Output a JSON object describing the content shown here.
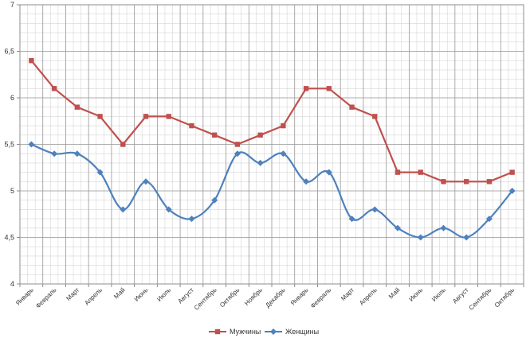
{
  "chart_data": {
    "type": "line",
    "categories": [
      "Январь",
      "Февраль",
      "Март",
      "Апрель",
      "Май",
      "Июнь",
      "Июль",
      "Август",
      "Сентябрь",
      "Октябрь",
      "Ноябрь",
      "Декабрь",
      "Январь",
      "Февраль",
      "Март",
      "Апрель",
      "Май",
      "Июнь",
      "Июль",
      "Август",
      "Сентябрь",
      "Октябрь"
    ],
    "series": [
      {
        "name": "Мужчины",
        "color": "#c0504d",
        "marker": "square",
        "smooth": false,
        "values": [
          6.4,
          6.1,
          5.9,
          5.8,
          5.5,
          5.8,
          5.8,
          5.7,
          5.6,
          5.5,
          5.6,
          5.7,
          6.1,
          6.1,
          5.9,
          5.8,
          5.2,
          5.2,
          5.1,
          5.1,
          5.1,
          5.2
        ]
      },
      {
        "name": "Женщины",
        "color": "#4f81bd",
        "marker": "diamond",
        "smooth": true,
        "values": [
          5.5,
          5.4,
          5.4,
          5.2,
          4.8,
          5.1,
          4.8,
          4.7,
          4.9,
          5.4,
          5.3,
          5.4,
          5.1,
          5.2,
          4.7,
          4.8,
          4.6,
          4.5,
          4.6,
          4.5,
          4.7,
          5.0
        ]
      }
    ],
    "yticks": [
      "4",
      "4,5",
      "5",
      "5,5",
      "6",
      "6,5",
      "7"
    ],
    "ylim": [
      4,
      7
    ],
    "grid": true,
    "legend": "bottom"
  }
}
